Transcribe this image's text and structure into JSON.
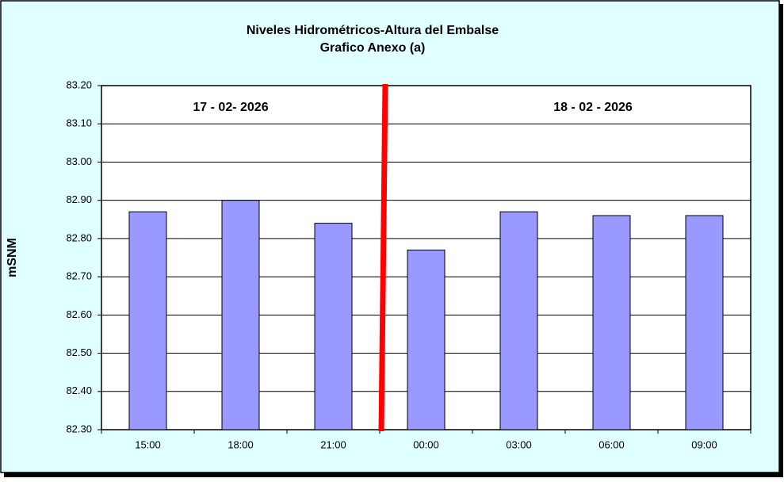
{
  "chart_data": {
    "type": "bar",
    "title": "Niveles Hidrométricos-Altura del Embalse",
    "subtitle": "Grafico Anexo (a)",
    "y_label": "mSNM",
    "categories": [
      "15:00",
      "18:00",
      "21:00",
      "00:00",
      "03:00",
      "06:00",
      "09:00"
    ],
    "values": [
      82.87,
      82.9,
      82.84,
      82.77,
      82.87,
      82.86,
      82.86
    ],
    "color": "#9999ff",
    "annotations": [
      "17 - 02- 2026",
      "18 - 02 - 2026"
    ],
    "ylim": [
      82.3,
      83.2
    ],
    "yticks": [
      {
        "value": 82.3,
        "label": "82.30"
      },
      {
        "value": 82.4,
        "label": "82.40"
      },
      {
        "value": 82.5,
        "label": "82.50"
      },
      {
        "value": 82.6,
        "label": "82.60"
      },
      {
        "value": 82.7,
        "label": "82.70"
      },
      {
        "value": 82.8,
        "label": "82.80"
      },
      {
        "value": 82.9,
        "label": "82.90"
      },
      {
        "value": 83.0,
        "label": "83.00"
      },
      {
        "value": 83.1,
        "label": "83.10"
      },
      {
        "value": 83.2,
        "label": "83.20"
      }
    ],
    "grid": true
  }
}
